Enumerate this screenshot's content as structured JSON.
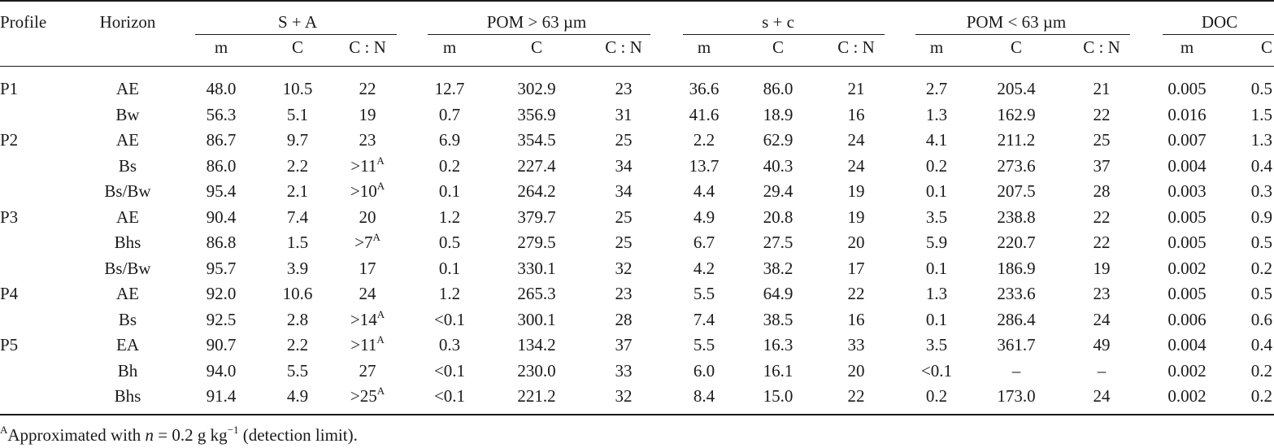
{
  "header": {
    "profile": "Profile",
    "horizon": "Horizon",
    "groups": [
      "S + A",
      "POM > 63 µm",
      "s + c",
      "POM < 63 µm",
      "DOC"
    ],
    "subheaders": [
      "m",
      "C",
      "C : N",
      "m",
      "C",
      "C : N",
      "m",
      "C",
      "C : N",
      "m",
      "C",
      "C : N",
      "m",
      "C"
    ]
  },
  "rows": [
    {
      "profile": "P1",
      "horizon": "AE",
      "values": [
        "48.0",
        "10.5",
        "22",
        "12.7",
        "302.9",
        "23",
        "36.6",
        "86.0",
        "21",
        "2.7",
        "205.4",
        "21",
        "0.005",
        "0.5"
      ]
    },
    {
      "profile": "",
      "horizon": "Bw",
      "values": [
        "56.3",
        "5.1",
        "19",
        "0.7",
        "356.9",
        "31",
        "41.6",
        "18.9",
        "16",
        "1.3",
        "162.9",
        "22",
        "0.016",
        "1.5"
      ]
    },
    {
      "profile": "P2",
      "horizon": "AE",
      "values": [
        "86.7",
        "9.7",
        "23",
        "6.9",
        "354.5",
        "25",
        "2.2",
        "62.9",
        "24",
        "4.1",
        "211.2",
        "25",
        "0.007",
        "1.3"
      ]
    },
    {
      "profile": "",
      "horizon": "Bs",
      "values": [
        "86.0",
        "2.2",
        ">11",
        "0.2",
        "227.4",
        "34",
        "13.7",
        "40.3",
        "24",
        "0.2",
        "273.6",
        "37",
        "0.004",
        "0.4"
      ],
      "sup": {
        "2": "A"
      }
    },
    {
      "profile": "",
      "horizon": "Bs/Bw",
      "values": [
        "95.4",
        "2.1",
        ">10",
        "0.1",
        "264.2",
        "34",
        "4.4",
        "29.4",
        "19",
        "0.1",
        "207.5",
        "28",
        "0.003",
        "0.3"
      ],
      "sup": {
        "2": "A"
      }
    },
    {
      "profile": "P3",
      "horizon": "AE",
      "values": [
        "90.4",
        "7.4",
        "20",
        "1.2",
        "379.7",
        "25",
        "4.9",
        "20.8",
        "19",
        "3.5",
        "238.8",
        "22",
        "0.005",
        "0.9"
      ]
    },
    {
      "profile": "",
      "horizon": "Bhs",
      "values": [
        "86.8",
        "1.5",
        ">7",
        "0.5",
        "279.5",
        "25",
        "6.7",
        "27.5",
        "20",
        "5.9",
        "220.7",
        "22",
        "0.005",
        "0.5"
      ],
      "sup": {
        "2": "A"
      }
    },
    {
      "profile": "",
      "horizon": "Bs/Bw",
      "values": [
        "95.7",
        "3.9",
        "17",
        "0.1",
        "330.1",
        "32",
        "4.2",
        "38.2",
        "17",
        "0.1",
        "186.9",
        "19",
        "0.002",
        "0.2"
      ]
    },
    {
      "profile": "P4",
      "horizon": "AE",
      "values": [
        "92.0",
        "10.6",
        "24",
        "1.2",
        "265.3",
        "23",
        "5.5",
        "64.9",
        "22",
        "1.3",
        "233.6",
        "23",
        "0.005",
        "0.5"
      ]
    },
    {
      "profile": "",
      "horizon": "Bs",
      "values": [
        "92.5",
        "2.8",
        ">14",
        "<0.1",
        "300.1",
        "28",
        "7.4",
        "38.5",
        "16",
        "0.1",
        "286.4",
        "24",
        "0.006",
        "0.6"
      ],
      "sup": {
        "2": "A"
      }
    },
    {
      "profile": "P5",
      "horizon": "EA",
      "values": [
        "90.7",
        "2.2",
        ">11",
        "0.3",
        "134.2",
        "37",
        "5.5",
        "16.3",
        "33",
        "3.5",
        "361.7",
        "49",
        "0.004",
        "0.4"
      ],
      "sup": {
        "2": "A"
      }
    },
    {
      "profile": "",
      "horizon": "Bh",
      "values": [
        "94.0",
        "5.5",
        "27",
        "<0.1",
        "230.0",
        "33",
        "6.0",
        "16.1",
        "20",
        "<0.1",
        "–",
        "–",
        "0.002",
        "0.2"
      ]
    },
    {
      "profile": "",
      "horizon": "Bhs",
      "values": [
        "91.4",
        "4.9",
        ">25",
        "<0.1",
        "221.2",
        "32",
        "8.4",
        "15.0",
        "22",
        "0.2",
        "173.0",
        "24",
        "0.002",
        "0.2"
      ],
      "sup": {
        "2": "A"
      }
    }
  ],
  "footnote": {
    "marker": "A",
    "text_before": "Approximated with ",
    "variable": "n",
    "text_middle": " = 0.2 g kg",
    "exponent": "−1",
    "text_after": " (detection limit)."
  }
}
